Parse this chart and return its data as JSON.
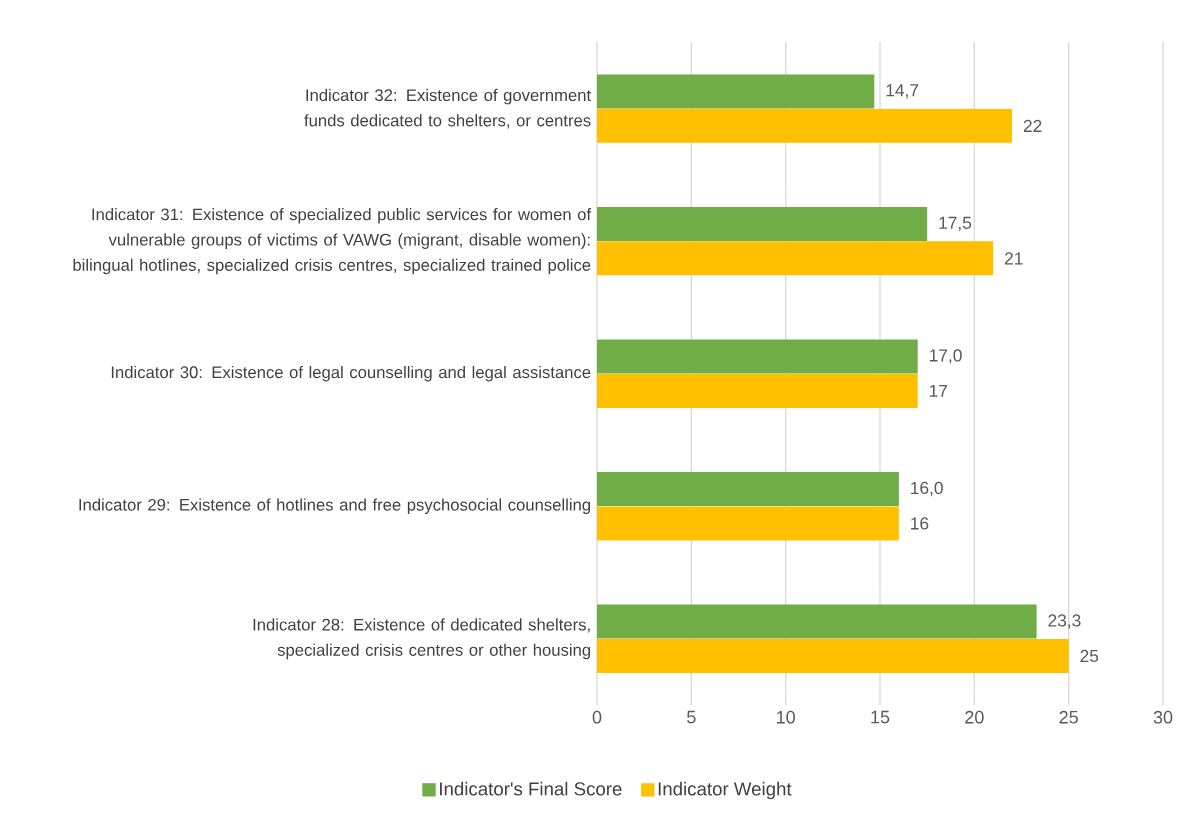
{
  "chart_data": {
    "type": "bar",
    "orientation": "horizontal",
    "categories": [
      "Indicator 32: Existence of government funds dedicated to shelters, or centres",
      "Indicator 31: Existence of specialized public services for women of vulnerable groups of victims of VAWG (migrant, disable women):  bilingual hotlines, specialized crisis centres, specialized trained police",
      "Indicator 30: Existence of legal counselling and legal assistance",
      "Indicator 29: Existence of hotlines and free psychosocial counselling",
      "Indicator 28: Existence of dedicated shelters, specialized crisis centres or other housing"
    ],
    "series": [
      {
        "name": "Indicator's Final Score",
        "color": "#70ad47",
        "values": [
          14.7,
          17.5,
          17.0,
          16.0,
          23.3
        ],
        "value_labels": [
          "14,7",
          "17,5",
          "17,0",
          "16,0",
          "23,3"
        ]
      },
      {
        "name": "Indicator Weight",
        "color": "#ffc000",
        "values": [
          22,
          21,
          17,
          16,
          25
        ],
        "value_labels": [
          "22",
          "21",
          "17",
          "16",
          "25"
        ]
      }
    ],
    "xlim": [
      0,
      30
    ],
    "xticks": [
      0,
      5,
      10,
      15,
      20,
      25,
      30
    ],
    "grid": "x",
    "legend": "bottom"
  }
}
